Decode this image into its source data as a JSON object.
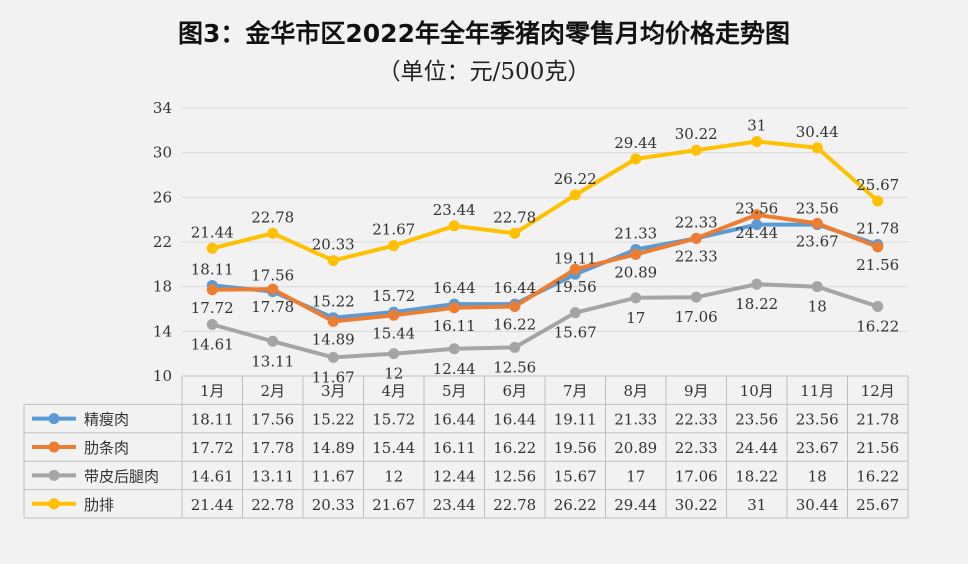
{
  "header": {
    "title": "图3：金华市区2022年全年季猪肉零售月均价格走势图",
    "subtitle": "（单位：元/500克）"
  },
  "chart_data": {
    "type": "line",
    "title": "图3：金华市区2022年全年季猪肉零售月均价格走势图",
    "subtitle": "（单位：元/500克）",
    "categories": [
      "1月",
      "2月",
      "3月",
      "4月",
      "5月",
      "6月",
      "7月",
      "8月",
      "9月",
      "10月",
      "11月",
      "12月"
    ],
    "ylim": [
      10,
      34
    ],
    "yticks": [
      10,
      14,
      18,
      22,
      26,
      30,
      34
    ],
    "grid": true,
    "legend": "data-table-left",
    "series": [
      {
        "name": "精瘦肉",
        "color": "#5b9bd5",
        "values": [
          18.11,
          17.56,
          15.22,
          15.72,
          16.44,
          16.44,
          19.11,
          21.33,
          22.33,
          23.56,
          23.56,
          21.78
        ]
      },
      {
        "name": "肋条肉",
        "color": "#ed7d31",
        "values": [
          17.72,
          17.78,
          14.89,
          15.44,
          16.11,
          16.22,
          19.56,
          20.89,
          22.33,
          24.44,
          23.67,
          21.56
        ]
      },
      {
        "name": "带皮后腿肉",
        "color": "#a5a5a5",
        "values": [
          14.61,
          13.11,
          11.67,
          12,
          12.44,
          12.56,
          15.67,
          17,
          17.06,
          18.22,
          18,
          16.22
        ]
      },
      {
        "name": "肋排",
        "color": "#ffc000",
        "values": [
          21.44,
          22.78,
          20.33,
          21.67,
          23.44,
          22.78,
          26.22,
          29.44,
          30.22,
          31,
          30.44,
          25.67
        ]
      }
    ]
  }
}
